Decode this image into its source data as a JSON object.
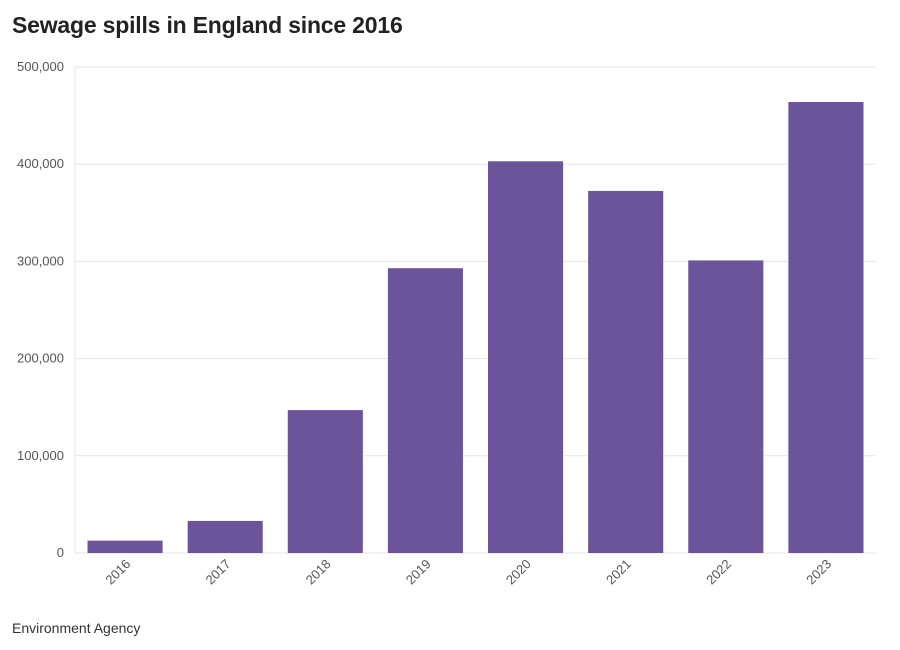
{
  "chart_data": {
    "type": "bar",
    "title": "Sewage spills in England since 2016",
    "categories": [
      "2016",
      "2017",
      "2018",
      "2019",
      "2020",
      "2021",
      "2022",
      "2023"
    ],
    "values": [
      12700,
      33000,
      147000,
      293000,
      403000,
      372500,
      301000,
      464000
    ],
    "xlabel": "",
    "ylabel": "",
    "ylim": [
      0,
      500000
    ],
    "yticks": [
      0,
      100000,
      200000,
      300000,
      400000,
      500000
    ],
    "ytick_labels": [
      "0",
      "100,000",
      "200,000",
      "300,000",
      "400,000",
      "500,000"
    ],
    "grid": true,
    "legend": "none",
    "bar_color": "#6b5499",
    "grid_color": "#e6e6e6",
    "source": "Environment Agency"
  }
}
